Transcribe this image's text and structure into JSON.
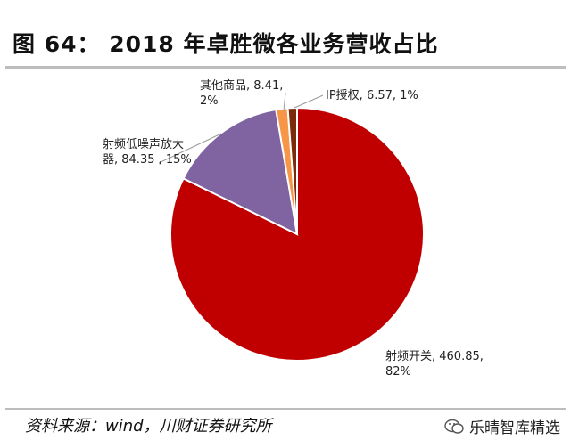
{
  "header": {
    "title": "图 64：  2018 年卓胜微各业务营收占比"
  },
  "chart_data": {
    "type": "pie",
    "start_angle_deg": 0,
    "direction": "clockwise",
    "slices": [
      {
        "name": "射频开关",
        "value": 460.85,
        "percent": "82%",
        "color": "#c00000",
        "label_lines": [
          "射频开关, 460.85,",
          "82%"
        ]
      },
      {
        "name": "射频低噪声放大器",
        "value": 84.35,
        "percent": "15%",
        "color": "#8064a2",
        "label_lines": [
          "射频低噪声放大",
          "器, 84.35 , 15%"
        ]
      },
      {
        "name": "其他商品",
        "value": 8.41,
        "percent": "2%",
        "color": "#f79646",
        "label_lines": [
          "其他商品, 8.41,",
          "2%"
        ]
      },
      {
        "name": "IP授权",
        "value": 6.57,
        "percent": "1%",
        "color": "#7b2a0a",
        "label_lines": [
          "IP授权, 6.57, 1%"
        ]
      }
    ]
  },
  "footer": {
    "source": "资料来源：wind，川财证券研究所",
    "watermark": "乐晴智库精选",
    "watermark_icon": "wechat-icon"
  }
}
